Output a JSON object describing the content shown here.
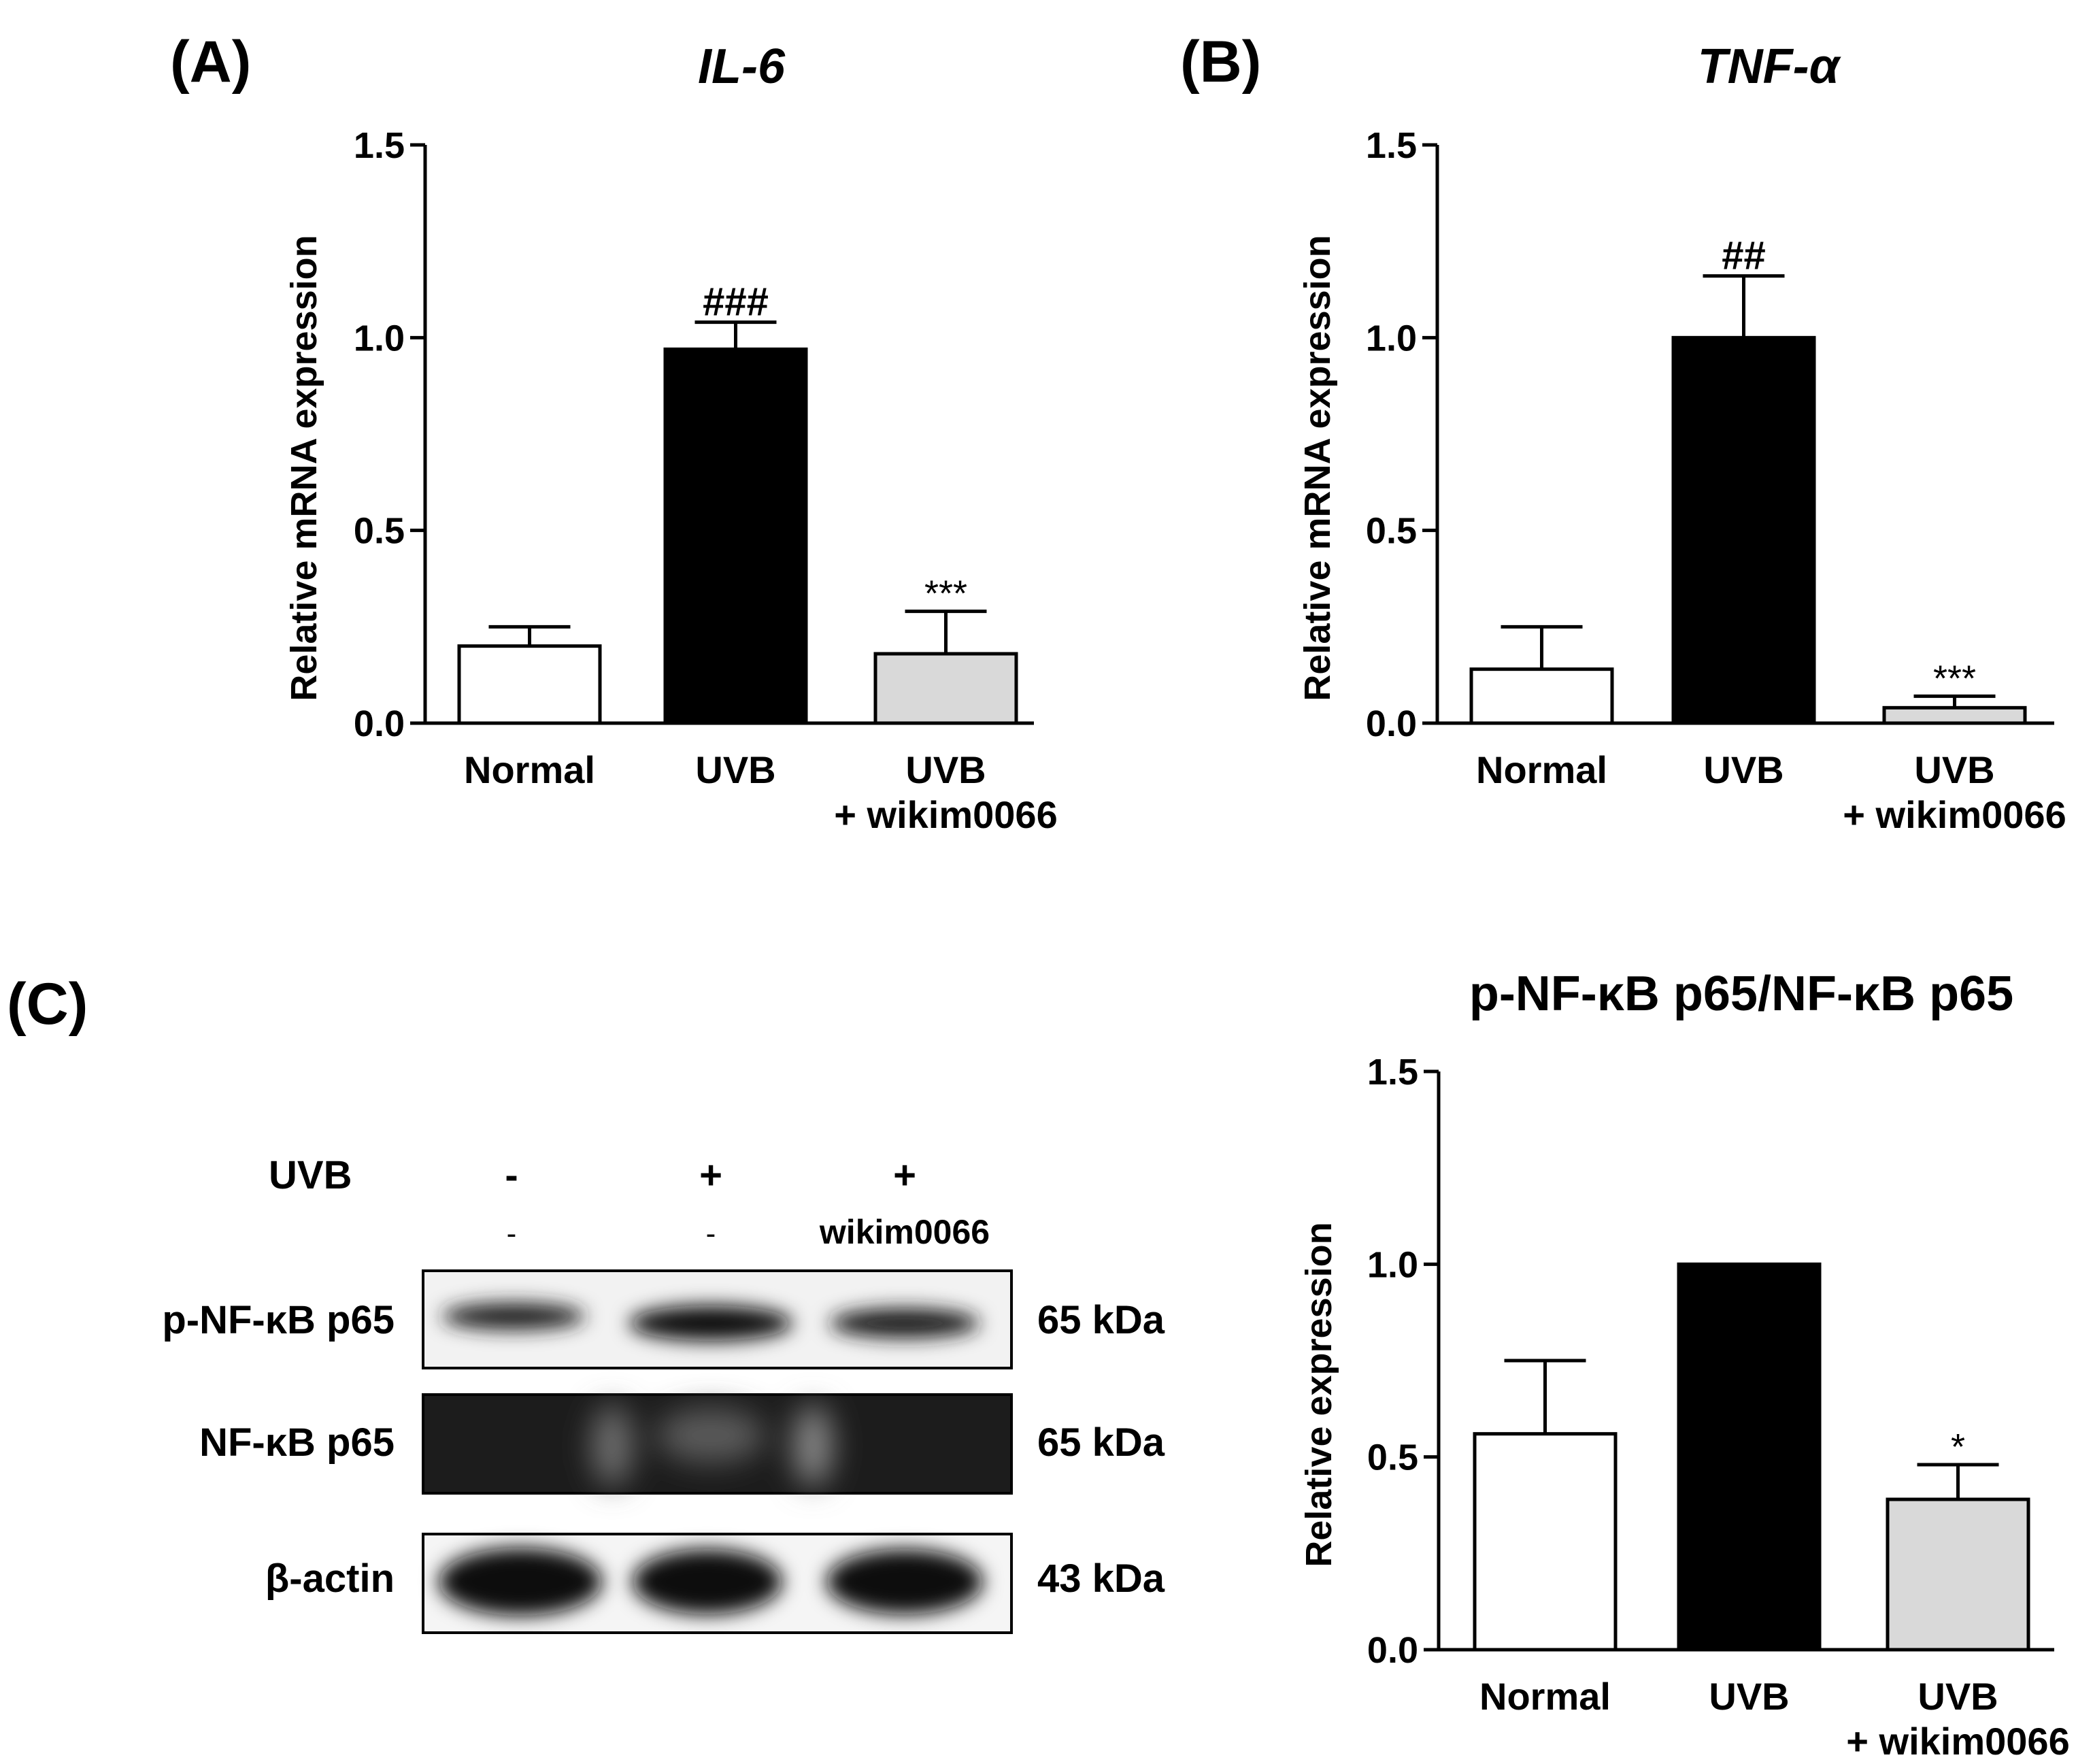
{
  "panels": {
    "a": "(A)",
    "b": "(B)",
    "c": "(C)"
  },
  "chart_data": [
    {
      "type": "bar",
      "title": "IL-6",
      "ylabel": "Relative mRNA expression",
      "ylim": [
        0,
        1.5
      ],
      "yticks": [
        "0.0",
        "0.5",
        "1.0",
        "1.5"
      ],
      "categories": [
        "Normal",
        "UVB",
        "UVB\n+ wikim0066"
      ],
      "values": [
        0.2,
        0.97,
        0.18
      ],
      "errors": [
        0.05,
        0.07,
        0.11
      ],
      "annotations": [
        "",
        "###",
        "***"
      ],
      "colors": [
        "#ffffff",
        "#000000",
        "#d9d9d9"
      ],
      "grid": false
    },
    {
      "type": "bar",
      "title": "TNF-α",
      "ylabel": "Relative mRNA expression",
      "ylim": [
        0,
        1.5
      ],
      "yticks": [
        "0.0",
        "0.5",
        "1.0",
        "1.5"
      ],
      "categories": [
        "Normal",
        "UVB",
        "UVB\n+ wikim0066"
      ],
      "values": [
        0.14,
        1.0,
        0.04
      ],
      "errors": [
        0.11,
        0.16,
        0.03
      ],
      "annotations": [
        "",
        "##",
        "***"
      ],
      "colors": [
        "#ffffff",
        "#000000",
        "#d9d9d9"
      ],
      "grid": false
    },
    {
      "type": "bar",
      "title": "p-NF-κB p65/NF-κB p65",
      "ylabel": "Relative expression",
      "ylim": [
        0,
        1.5
      ],
      "yticks": [
        "0.0",
        "0.5",
        "1.0",
        "1.5"
      ],
      "categories": [
        "Normal",
        "UVB",
        "UVB\n+ wikim0066"
      ],
      "values": [
        0.56,
        1.0,
        0.39
      ],
      "errors": [
        0.19,
        0.0,
        0.09
      ],
      "annotations": [
        "",
        "",
        "*"
      ],
      "colors": [
        "#ffffff",
        "#000000",
        "#d9d9d9"
      ],
      "grid": false
    }
  ],
  "blot": {
    "treatment_row_label": "UVB",
    "uvb_signs": [
      "-",
      "+",
      "+"
    ],
    "second_row_signs": [
      "-",
      "-",
      "wikim0066"
    ],
    "bands": [
      {
        "label": "p-NF-κB p65",
        "size": "65 kDa",
        "intensity": [
          0.55,
          0.85,
          0.75
        ]
      },
      {
        "label": "NF-κB p65",
        "size": "65 kDa",
        "intensity": [
          0.95,
          0.7,
          0.9
        ]
      },
      {
        "label": "β-actin",
        "size": "43 kDa",
        "intensity": [
          1.0,
          0.95,
          0.95
        ]
      }
    ]
  }
}
